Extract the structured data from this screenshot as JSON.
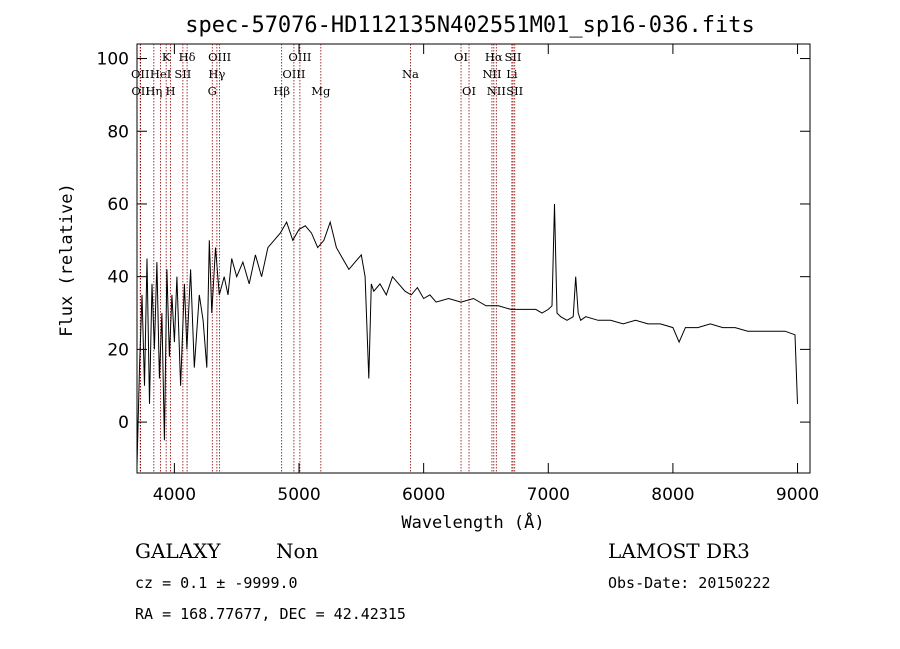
{
  "chart_data": {
    "type": "line",
    "title": "spec-57076-HD112135N402551M01_sp16-036.fits",
    "xlabel": "Wavelength (Å)",
    "ylabel": "Flux (relative)",
    "xlim": [
      3700,
      9100
    ],
    "ylim": [
      -14,
      104
    ],
    "x_ticks": [
      4000,
      5000,
      6000,
      7000,
      8000,
      9000
    ],
    "y_ticks": [
      0,
      20,
      40,
      60,
      80,
      100
    ],
    "grid": false,
    "series": [
      {
        "name": "spectrum",
        "x": [
          3700,
          3720,
          3740,
          3760,
          3780,
          3800,
          3820,
          3840,
          3860,
          3880,
          3900,
          3920,
          3940,
          3960,
          3980,
          4000,
          4020,
          4050,
          4080,
          4100,
          4130,
          4160,
          4200,
          4230,
          4260,
          4280,
          4300,
          4330,
          4360,
          4400,
          4430,
          4460,
          4500,
          4550,
          4600,
          4650,
          4700,
          4750,
          4800,
          4850,
          4900,
          4950,
          5000,
          5050,
          5100,
          5150,
          5200,
          5250,
          5300,
          5350,
          5400,
          5450,
          5500,
          5530,
          5560,
          5580,
          5600,
          5650,
          5700,
          5750,
          5800,
          5850,
          5900,
          5950,
          6000,
          6050,
          6100,
          6200,
          6300,
          6400,
          6500,
          6600,
          6700,
          6800,
          6900,
          6950,
          7000,
          7030,
          7050,
          7070,
          7100,
          7150,
          7200,
          7220,
          7240,
          7260,
          7300,
          7400,
          7500,
          7600,
          7700,
          7800,
          7900,
          8000,
          8050,
          8100,
          8200,
          8300,
          8400,
          8500,
          8600,
          8700,
          8800,
          8900,
          8980,
          9000
        ],
        "y": [
          -12,
          15,
          35,
          10,
          45,
          5,
          38,
          20,
          44,
          12,
          30,
          -5,
          42,
          18,
          35,
          22,
          40,
          10,
          38,
          20,
          42,
          15,
          35,
          28,
          15,
          50,
          30,
          48,
          35,
          40,
          35,
          45,
          40,
          44,
          38,
          46,
          40,
          48,
          50,
          52,
          55,
          50,
          53,
          54,
          52,
          48,
          50,
          55,
          48,
          45,
          42,
          44,
          46,
          40,
          12,
          38,
          36,
          38,
          35,
          40,
          38,
          36,
          35,
          37,
          34,
          35,
          33,
          34,
          33,
          34,
          32,
          32,
          31,
          31,
          31,
          30,
          31,
          32,
          60,
          30,
          29,
          28,
          29,
          40,
          30,
          28,
          29,
          28,
          28,
          27,
          28,
          27,
          27,
          26,
          22,
          26,
          26,
          27,
          26,
          26,
          25,
          25,
          25,
          25,
          24,
          5
        ]
      }
    ],
    "line_markers": [
      {
        "wavelength": 3726,
        "label": "OII",
        "row": 2
      },
      {
        "wavelength": 3729,
        "label": "OII",
        "row": 3
      },
      {
        "wavelength": 3835,
        "label": "Hη",
        "row": 3
      },
      {
        "wavelength": 3889,
        "label": "HeI",
        "row": 2
      },
      {
        "wavelength": 3934,
        "label": "K",
        "row": 1
      },
      {
        "wavelength": 3969,
        "label": "H",
        "row": 3
      },
      {
        "wavelength": 4102,
        "label": "Hδ",
        "row": 1
      },
      {
        "wavelength": 4068,
        "label": "SII",
        "row": 2
      },
      {
        "wavelength": 4304,
        "label": "G",
        "row": 3
      },
      {
        "wavelength": 4341,
        "label": "Hγ",
        "row": 2
      },
      {
        "wavelength": 4363,
        "label": "OIII",
        "row": 1
      },
      {
        "wavelength": 4861,
        "label": "Hβ",
        "row": 3
      },
      {
        "wavelength": 4959,
        "label": "OIII",
        "row": 2
      },
      {
        "wavelength": 5007,
        "label": "OIII",
        "row": 1
      },
      {
        "wavelength": 5175,
        "label": "Mg",
        "row": 3
      },
      {
        "wavelength": 5894,
        "label": "Na",
        "row": 2
      },
      {
        "wavelength": 6300,
        "label": "OI",
        "row": 1
      },
      {
        "wavelength": 6364,
        "label": "OI",
        "row": 3
      },
      {
        "wavelength": 6548,
        "label": "NII",
        "row": 2
      },
      {
        "wavelength": 6563,
        "label": "Hα",
        "row": 1
      },
      {
        "wavelength": 6583,
        "label": "NII",
        "row": 3
      },
      {
        "wavelength": 6708,
        "label": "Li",
        "row": 2
      },
      {
        "wavelength": 6717,
        "label": "SII",
        "row": 1
      },
      {
        "wavelength": 6731,
        "label": "SII",
        "row": 3
      }
    ],
    "line_x_in_plot": [
      3726,
      3729,
      3835,
      3889,
      3934,
      3969,
      4102,
      4068,
      4304,
      4341,
      4363,
      4861,
      4959,
      5007,
      5175,
      5894,
      6300,
      6364,
      6548,
      6563,
      6583,
      6708,
      6717,
      6731
    ]
  },
  "info": {
    "class": "GALAXY",
    "subclass": "Non",
    "survey": "LAMOST DR3",
    "cz": "cz = 0.1 ± -9999.0",
    "obs_date": "Obs-Date: 20150222",
    "coords": "RA = 168.77677, DEC =  42.42315"
  }
}
